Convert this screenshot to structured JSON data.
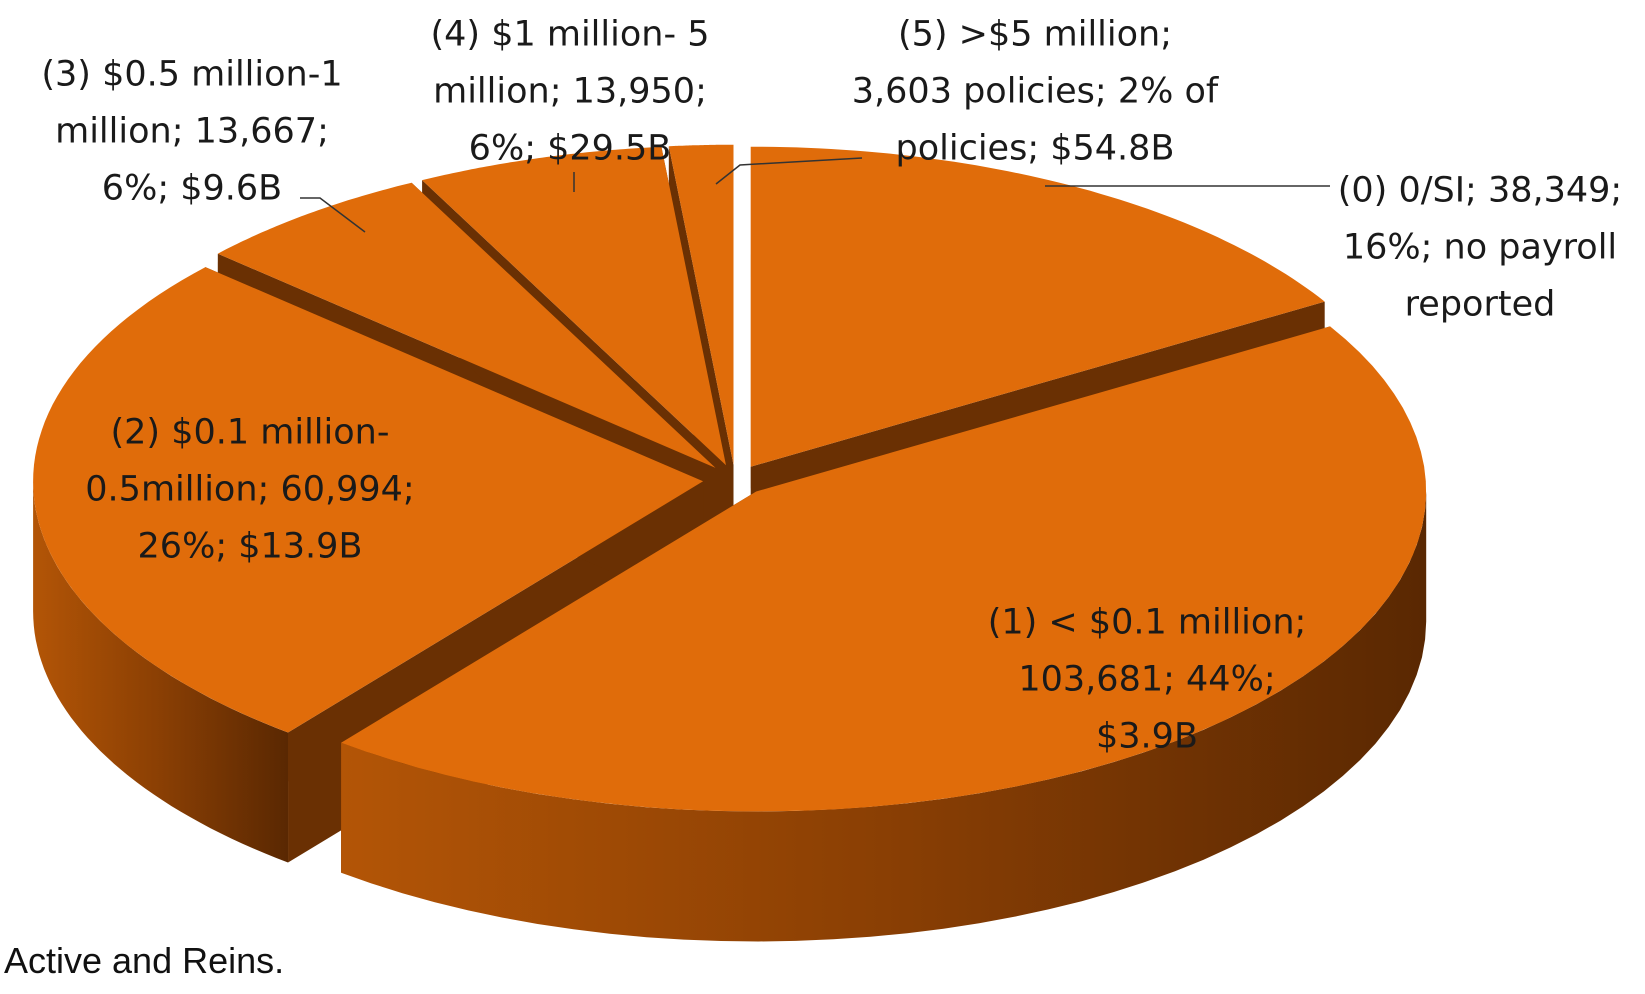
{
  "chart_data": {
    "type": "pie3d",
    "categories": [
      "(0)",
      "(1)",
      "(2)",
      "(3)",
      "(4)",
      "(5)"
    ],
    "values": [
      38349,
      103681,
      60994,
      13667,
      13950,
      3603
    ],
    "value_labels": [
      "(0) 0/SI; 38,349; 16%; no payroll reported",
      "(1) < $0.1 million; 103,681; 44%; $3.9B",
      "(2) $0.1 million- 0.5million; 60,994; 26%; $13.9B",
      "(3) $0.5 million-1 million; 13,667; 6%; $9.6B",
      "(4) $1 million- 5 million; 13,950; 6%; $29.5B",
      "(5) >$5 million; 3,603 policies; 2% of policies; $54.8B"
    ],
    "color": "#e06c0a",
    "note": "Active and Reins."
  }
}
